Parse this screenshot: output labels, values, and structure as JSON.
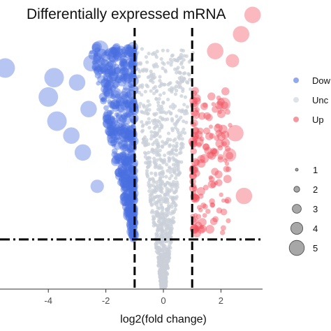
{
  "chart_data": {
    "type": "scatter",
    "title": "Differentially expressed mRNA",
    "xlabel": "log2(fold change)",
    "ylabel": "",
    "xlim": [
      -5.6,
      3.6
    ],
    "x_ticks": [
      -4,
      -2,
      0,
      2
    ],
    "x_tick_labels": [
      "-4",
      "-2",
      "0",
      "2"
    ],
    "ylim": [
      0,
      1
    ],
    "thresholds": {
      "fold_change_x": [
        -1,
        1
      ],
      "significance_y": 0.2
    },
    "grid": false,
    "series": [
      {
        "name": "Dow",
        "color": "#4a6ee0"
      },
      {
        "name": "Unc",
        "color": "#c9cfd8"
      },
      {
        "name": "Up",
        "color": "#f0505e"
      }
    ],
    "size_legend": [
      "1",
      "2",
      "3",
      "4",
      "5"
    ],
    "legend_placement": "right",
    "highlighted_points": [
      {
        "series": "Dow",
        "x": -5.5,
        "y": 0.91,
        "size": 5
      },
      {
        "series": "Dow",
        "x": -3.8,
        "y": 0.87,
        "size": 5
      },
      {
        "series": "Dow",
        "x": -4.0,
        "y": 0.79,
        "size": 5
      },
      {
        "series": "Dow",
        "x": -3.0,
        "y": 0.85,
        "size": 4
      },
      {
        "series": "Dow",
        "x": -3.7,
        "y": 0.69,
        "size": 5
      },
      {
        "series": "Dow",
        "x": -3.2,
        "y": 0.63,
        "size": 4
      },
      {
        "series": "Dow",
        "x": -2.5,
        "y": 0.93,
        "size": 4
      },
      {
        "series": "Dow",
        "x": -2.2,
        "y": 0.99,
        "size": 4
      },
      {
        "series": "Dow",
        "x": -2.6,
        "y": 0.74,
        "size": 4
      },
      {
        "series": "Dow",
        "x": -2.8,
        "y": 0.56,
        "size": 4
      },
      {
        "series": "Dow",
        "x": -1.7,
        "y": 0.96,
        "size": 3
      },
      {
        "series": "Dow",
        "x": -2.3,
        "y": 0.42,
        "size": 3
      },
      {
        "series": "Up",
        "x": 3.1,
        "y": 1.13,
        "size": 4
      },
      {
        "series": "Up",
        "x": 2.7,
        "y": 1.05,
        "size": 4
      },
      {
        "series": "Up",
        "x": 1.8,
        "y": 0.98,
        "size": 4
      },
      {
        "series": "Up",
        "x": 2.4,
        "y": 0.94,
        "size": 3
      },
      {
        "series": "Up",
        "x": 2.1,
        "y": 0.76,
        "size": 3
      },
      {
        "series": "Up",
        "x": 2.5,
        "y": 0.64,
        "size": 4
      },
      {
        "series": "Up",
        "x": 2.3,
        "y": 0.55,
        "size": 3
      },
      {
        "series": "Up",
        "x": 2.8,
        "y": 0.38,
        "size": 4
      }
    ]
  }
}
